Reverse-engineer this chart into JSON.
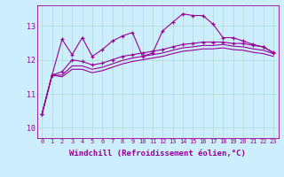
{
  "background_color": "#cceeff",
  "grid_color": "#aaddcc",
  "line_color": "#990099",
  "marker": "+",
  "xlabel": "Windchill (Refroidissement éolien,°C)",
  "xlabel_fontsize": 6.5,
  "ylim": [
    9.7,
    13.6
  ],
  "xlim": [
    -0.5,
    23.5
  ],
  "series1": [
    10.4,
    11.55,
    12.6,
    12.15,
    12.65,
    12.1,
    12.3,
    12.55,
    12.7,
    12.8,
    12.1,
    12.2,
    12.85,
    13.1,
    13.35,
    13.3,
    13.3,
    13.05,
    12.65,
    12.65,
    12.55,
    12.45,
    12.38,
    12.2
  ],
  "series2": [
    10.4,
    11.55,
    11.65,
    12.0,
    11.95,
    11.85,
    11.9,
    12.0,
    12.1,
    12.15,
    12.2,
    12.25,
    12.3,
    12.38,
    12.45,
    12.48,
    12.52,
    12.52,
    12.52,
    12.48,
    12.48,
    12.42,
    12.38,
    12.22
  ],
  "series3": [
    10.4,
    11.55,
    11.55,
    11.82,
    11.82,
    11.72,
    11.78,
    11.88,
    11.98,
    12.05,
    12.1,
    12.15,
    12.2,
    12.28,
    12.35,
    12.38,
    12.42,
    12.42,
    12.45,
    12.4,
    12.38,
    12.32,
    12.28,
    12.18
  ],
  "series4": [
    10.4,
    11.55,
    11.5,
    11.72,
    11.72,
    11.62,
    11.68,
    11.78,
    11.88,
    11.95,
    12.0,
    12.05,
    12.1,
    12.18,
    12.25,
    12.28,
    12.32,
    12.32,
    12.35,
    12.3,
    12.28,
    12.22,
    12.18,
    12.1
  ]
}
